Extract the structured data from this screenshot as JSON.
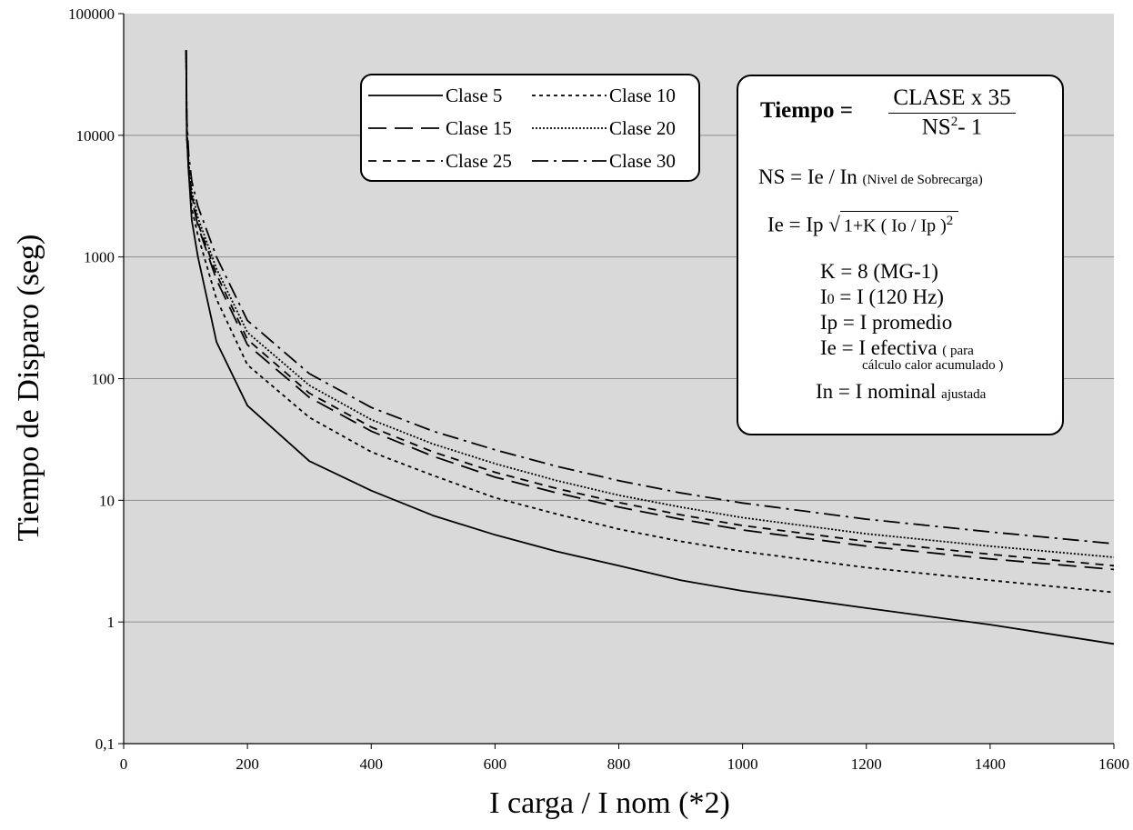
{
  "chart_data": {
    "type": "line",
    "xlabel": "I carga / I nom (*2)",
    "ylabel": "Tiempo de Disparo (seg)",
    "xlim": [
      0,
      1600
    ],
    "ylim": [
      0.1,
      100000
    ],
    "yscale": "log",
    "grid": "horizontal",
    "legend_position": "top-center",
    "x_ticks": [
      "0",
      "200",
      "400",
      "600",
      "800",
      "1000",
      "1200",
      "1400",
      "1600"
    ],
    "y_ticks": [
      "0,1",
      "1",
      "10",
      "100",
      "1000",
      "10000",
      "100000"
    ],
    "x": [
      101,
      102,
      105,
      110,
      120,
      150,
      200,
      300,
      400,
      500,
      600,
      700,
      800,
      900,
      1000,
      1200,
      1400,
      1600
    ],
    "series": [
      {
        "name": "Clase 5",
        "dash": "solid",
        "values": [
          50000,
          10000,
          5000,
          2000,
          1000,
          200,
          60,
          21,
          12,
          7.5,
          5.2,
          3.8,
          2.9,
          2.2,
          1.8,
          1.3,
          0.95,
          0.66
        ]
      },
      {
        "name": "Clase 10",
        "dash": "short-dash",
        "values": [
          50000,
          10000,
          5000,
          2500,
          1500,
          450,
          130,
          48,
          25,
          16,
          10.5,
          7.7,
          5.8,
          4.6,
          3.8,
          2.8,
          2.2,
          1.75
        ]
      },
      {
        "name": "Clase 15",
        "dash": "long-dash",
        "values": [
          50000,
          10000,
          5000,
          3000,
          1800,
          650,
          190,
          70,
          37,
          23,
          15.5,
          11.5,
          8.8,
          7.0,
          5.7,
          4.2,
          3.3,
          2.7
        ]
      },
      {
        "name": "Clase 20",
        "dash": "dotted",
        "values": [
          50000,
          12000,
          6000,
          3500,
          2100,
          800,
          240,
          88,
          46,
          29,
          20,
          14.5,
          11,
          8.8,
          7.2,
          5.3,
          4.2,
          3.4
        ]
      },
      {
        "name": "Clase 25",
        "dash": "medium-dash",
        "values": [
          50000,
          12000,
          5500,
          3200,
          1900,
          720,
          210,
          76,
          40,
          25,
          17,
          12.5,
          9.6,
          7.6,
          6.2,
          4.6,
          3.6,
          2.9
        ]
      },
      {
        "name": "Clase 30",
        "dash": "dash-dot",
        "values": [
          50000,
          14000,
          7000,
          4200,
          2600,
          1000,
          300,
          110,
          58,
          37,
          26,
          19,
          14.5,
          11.5,
          9.5,
          7.0,
          5.5,
          4.4
        ]
      }
    ]
  },
  "legend": {
    "items": [
      "Clase 5",
      "Clase 10",
      "Clase 15",
      "Clase 20",
      "Clase 25",
      "Clase 30"
    ]
  },
  "info_box": {
    "tiempo_label": "Tiempo =",
    "numerator": "CLASE x 35",
    "denominator_base": "NS",
    "denominator_exp": "2",
    "denominator_rest": "- 1",
    "ns_main": "NS = Ie / In",
    "ns_note": "(Nivel de Sobrecarga)",
    "ie_left": "Ie = Ip",
    "ie_radicand": "1+K ( Io / Ip )",
    "ie_exp": "2",
    "k_line": "K = 8 (MG-1)",
    "io_main": "I",
    "io_sub": "0",
    "io_rest": " = I (120 Hz)",
    "ip_line": "Ip = I promedio",
    "ie_def_main": "Ie = I efectiva",
    "ie_def_note1": "( para",
    "ie_def_note2": "cálculo calor acumulado )",
    "in_main": "In = I nominal",
    "in_note": "ajustada"
  },
  "colors": {
    "plot_background": "#d9d9d9",
    "grid": "#8c8c8c",
    "line": "#000000"
  }
}
